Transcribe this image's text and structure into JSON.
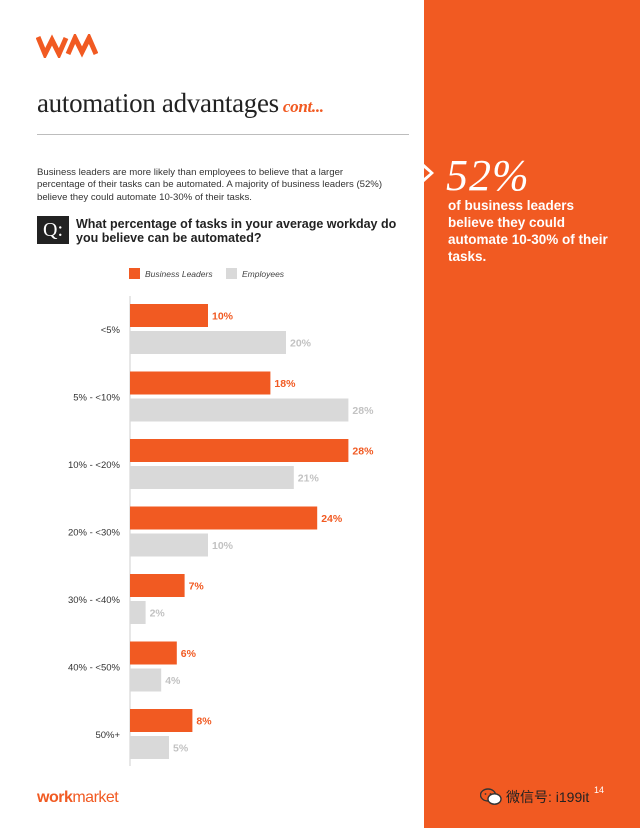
{
  "header": {
    "title": "automation advantages",
    "title_suffix": "cont..."
  },
  "intro_text": "Business leaders are more likely than employees to believe that a larger percentage of their tasks can be automated. A majority of business leaders (52%) believe they could automate 10-30% of their tasks.",
  "question": {
    "badge": "Q:",
    "text": "What percentage of tasks in your average workday do you believe can be automated?"
  },
  "sidebar": {
    "stat": "52%",
    "text": "of business leaders believe they could automate 10-30% of their tasks.",
    "color": "#f15a22"
  },
  "footer": {
    "brand_work": "work",
    "brand_market": "market",
    "page_number": "14",
    "watermark": "微信号: i199it"
  },
  "colors": {
    "accent": "#f15a22",
    "employees": "#d9d9d9",
    "employee_label": "#c2c2c2"
  },
  "chart_data": {
    "type": "bar",
    "orientation": "horizontal",
    "categories": [
      "<5%",
      "5% - <10%",
      "10% - <20%",
      "20% - <30%",
      "30% - <40%",
      "40% - <50%",
      "50%+"
    ],
    "series": [
      {
        "name": "Business Leaders",
        "values": [
          10,
          18,
          28,
          24,
          7,
          6,
          8
        ],
        "labels": [
          "10%",
          "18%",
          "28%",
          "24%",
          "7%",
          "6%",
          "8%"
        ]
      },
      {
        "name": "Employees",
        "values": [
          20,
          28,
          21,
          10,
          2,
          4,
          5
        ],
        "labels": [
          "20%",
          "28%",
          "21%",
          "10%",
          "2%",
          "4%",
          "5%"
        ]
      }
    ],
    "legend": "top-left",
    "grid": false
  }
}
